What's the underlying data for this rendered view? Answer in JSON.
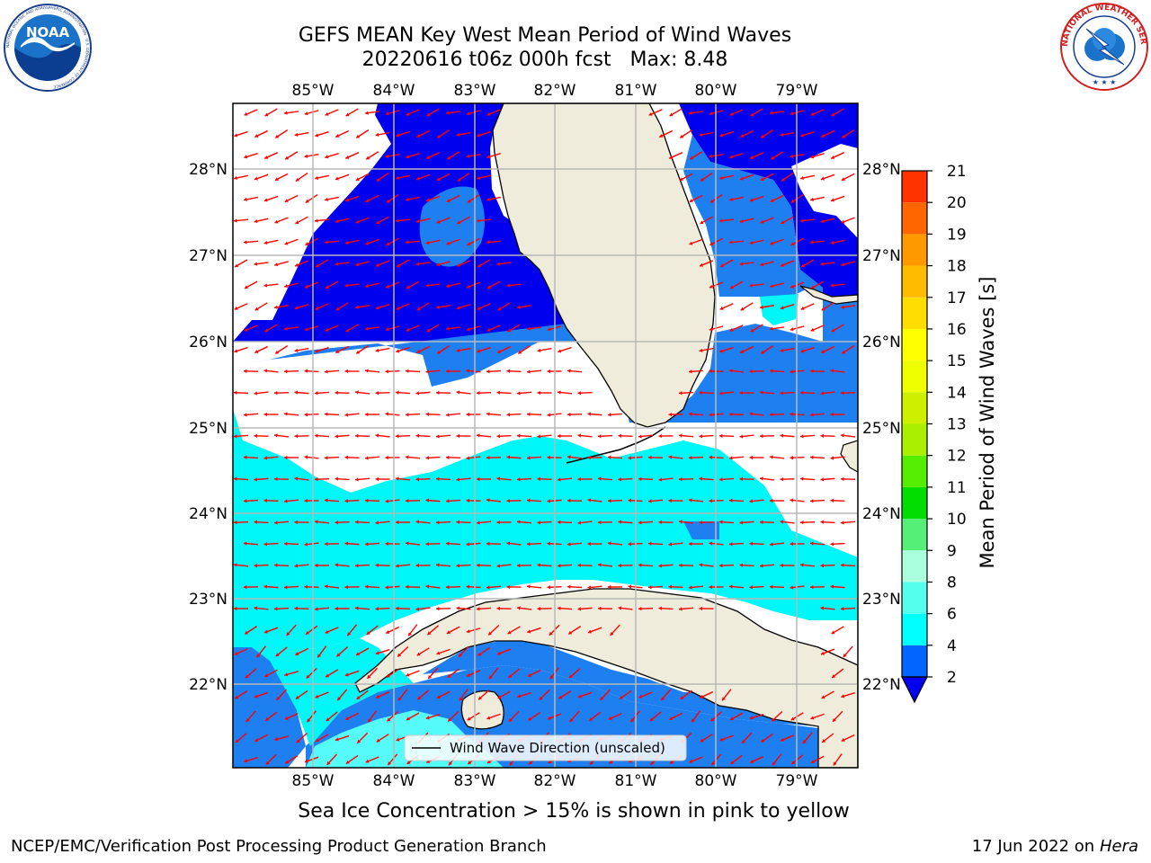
{
  "title": {
    "line1": "GEFS MEAN Key West Mean Period of Wind Waves",
    "line2": "20220616 t06z 000h fcst   Max: 8.48"
  },
  "logos": {
    "left": "NOAA",
    "left_ring_text": "NATIONAL OCEANIC AND ATMOSPHERIC ADMINISTRATION · U.S. DEPARTMENT OF COMMERCE",
    "right_ring_text": "NATIONAL WEATHER SERVICE"
  },
  "map": {
    "lon_labels": [
      "85°W",
      "84°W",
      "83°W",
      "82°W",
      "81°W",
      "80°W",
      "79°W"
    ],
    "lat_labels": [
      "28°N",
      "27°N",
      "26°N",
      "25°N",
      "24°N",
      "23°N",
      "22°N"
    ],
    "legend_label": "Wind Wave Direction (unscaled)",
    "colors": {
      "land": "#efecdc",
      "dark_blue": "#0000ee",
      "mid_blue": "#1e7ff0",
      "cyan": "#00f7f7",
      "light_cyan": "#55fbf8",
      "arrow": "#ff0000",
      "grid": "#b8b8b8"
    }
  },
  "colorbar": {
    "label": "Mean Period of Wind Waves [s]",
    "ticks": [
      "2",
      "4",
      "6",
      "8",
      "9",
      "10",
      "11",
      "12",
      "13",
      "14",
      "15",
      "16",
      "17",
      "18",
      "19",
      "20",
      "21"
    ],
    "colors": [
      "#0066ff",
      "#00ffff",
      "#55ffee",
      "#aaffdd",
      "#55ee77",
      "#00dd00",
      "#55ee00",
      "#aaee00",
      "#ccf000",
      "#eeff00",
      "#ffff00",
      "#ffdd00",
      "#ffbb00",
      "#ff9900",
      "#ff6600",
      "#ff3300"
    ],
    "under_color": "#0000ee"
  },
  "subtitle": "Sea Ice Concentration > 15% is shown in pink to yellow",
  "footer": {
    "left": "NCEP/EMC/Verification Post Processing Product Generation Branch",
    "date": "17 Jun 2022 on",
    "host": "Hera"
  }
}
